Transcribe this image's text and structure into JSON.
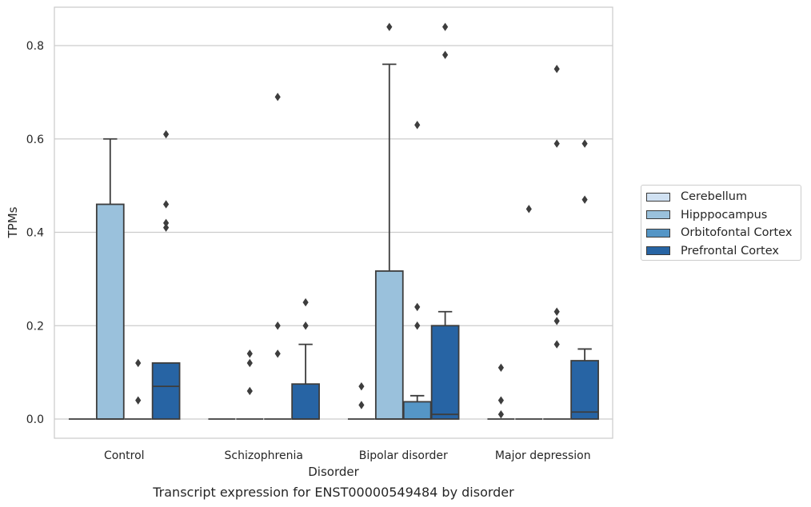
{
  "chart_data": {
    "type": "box",
    "caption": "Transcript expression for ENST00000549484 by disorder",
    "xlabel": "Disorder",
    "ylabel": "TPMs",
    "ylim": [
      -0.04,
      0.88
    ],
    "yticks": [
      "0.0",
      "0.2",
      "0.4",
      "0.6",
      "0.8"
    ],
    "ytick_values": [
      0.0,
      0.2,
      0.4,
      0.6,
      0.8
    ],
    "grid": "horizontal",
    "legend_position": "right",
    "categories": [
      "Control",
      "Schizophrenia",
      "Bipolar disorder",
      "Major depression"
    ],
    "series": [
      {
        "name": "Cerebellum",
        "color": "#d0e1f2",
        "boxes": [
          {
            "q1": 0,
            "median": 0,
            "q3": 0,
            "whislo": 0,
            "whishi": 0,
            "fliers": []
          },
          {
            "q1": 0,
            "median": 0,
            "q3": 0,
            "whislo": 0,
            "whishi": 0,
            "fliers": []
          },
          {
            "q1": 0,
            "median": 0,
            "q3": 0,
            "whislo": 0,
            "whishi": 0,
            "fliers": [
              0.03,
              0.07
            ]
          },
          {
            "q1": 0,
            "median": 0,
            "q3": 0,
            "whislo": 0,
            "whishi": 0,
            "fliers": [
              0.01,
              0.04,
              0.11
            ]
          }
        ]
      },
      {
        "name": "Hipppocampus",
        "color": "#9ac1dc",
        "boxes": [
          {
            "q1": 0,
            "median": 0,
            "q3": 0.46,
            "whislo": 0,
            "whishi": 0.6,
            "fliers": []
          },
          {
            "q1": 0,
            "median": 0,
            "q3": 0,
            "whislo": 0,
            "whishi": 0,
            "fliers": [
              0.06,
              0.12,
              0.14
            ]
          },
          {
            "q1": 0,
            "median": 0,
            "q3": 0.317,
            "whislo": 0,
            "whishi": 0.76,
            "fliers": [
              0.84
            ]
          },
          {
            "q1": 0,
            "median": 0,
            "q3": 0,
            "whislo": 0,
            "whishi": 0,
            "fliers": [
              0.45
            ]
          }
        ]
      },
      {
        "name": "Orbitofontal Cortex",
        "color": "#5596c6",
        "boxes": [
          {
            "q1": 0,
            "median": 0,
            "q3": 0,
            "whislo": 0,
            "whishi": 0,
            "fliers": [
              0.04,
              0.12
            ]
          },
          {
            "q1": 0,
            "median": 0,
            "q3": 0,
            "whislo": 0,
            "whishi": 0,
            "fliers": [
              0.14,
              0.2,
              0.69
            ]
          },
          {
            "q1": 0,
            "median": 0,
            "q3": 0.037,
            "whislo": 0,
            "whishi": 0.05,
            "fliers": [
              0.2,
              0.24,
              0.63
            ]
          },
          {
            "q1": 0,
            "median": 0,
            "q3": 0,
            "whislo": 0,
            "whishi": 0,
            "fliers": [
              0.16,
              0.21,
              0.23,
              0.59,
              0.75
            ]
          }
        ]
      },
      {
        "name": "Prefrontal Cortex",
        "color": "#2764a4",
        "boxes": [
          {
            "q1": 0,
            "median": 0.07,
            "q3": 0.12,
            "whislo": 0,
            "whishi": 0.12,
            "fliers": [
              0.41,
              0.42,
              0.46,
              0.61
            ]
          },
          {
            "q1": 0,
            "median": 0,
            "q3": 0.075,
            "whislo": 0,
            "whishi": 0.16,
            "fliers": [
              0.2,
              0.25
            ]
          },
          {
            "q1": 0,
            "median": 0.01,
            "q3": 0.2,
            "whislo": 0,
            "whishi": 0.23,
            "fliers": [
              0.78,
              0.84
            ]
          },
          {
            "q1": 0,
            "median": 0.015,
            "q3": 0.125,
            "whislo": 0,
            "whishi": 0.15,
            "fliers": [
              0.47,
              0.59
            ]
          }
        ]
      }
    ]
  }
}
